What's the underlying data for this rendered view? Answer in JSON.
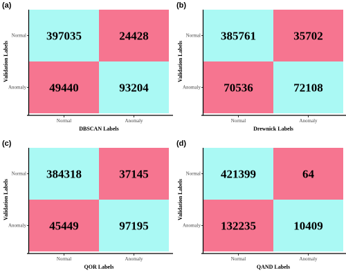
{
  "colors": {
    "correct": "#aaf9f4",
    "incorrect": "#f67590",
    "axis": "#000000",
    "background": "#ffffff"
  },
  "chart_data": [
    {
      "type": "heatmap",
      "panel_label": "(a)",
      "xlabel": "DBSCAN Labels",
      "ylabel": "Validation Labels",
      "x_categories": [
        "Normal",
        "Anomaly"
      ],
      "y_categories": [
        "Normal",
        "Anomaly"
      ],
      "values": [
        [
          397035,
          24428
        ],
        [
          49440,
          93204
        ]
      ]
    },
    {
      "type": "heatmap",
      "panel_label": "(b)",
      "xlabel": "Drewnick Labels",
      "ylabel": "Validation Labels",
      "x_categories": [
        "Normal",
        "Anomaly"
      ],
      "y_categories": [
        "Normal",
        "Anomaly"
      ],
      "values": [
        [
          385761,
          35702
        ],
        [
          70536,
          72108
        ]
      ]
    },
    {
      "type": "heatmap",
      "panel_label": "(c)",
      "xlabel": "QOR Labels",
      "ylabel": "Validation Labels",
      "x_categories": [
        "Normal",
        "Anomaly"
      ],
      "y_categories": [
        "Normal",
        "Anomaly"
      ],
      "values": [
        [
          384318,
          37145
        ],
        [
          45449,
          97195
        ]
      ]
    },
    {
      "type": "heatmap",
      "panel_label": "(d)",
      "xlabel": "QAND Labels",
      "ylabel": "Validation Labels",
      "x_categories": [
        "Normal",
        "Anomaly"
      ],
      "y_categories": [
        "Normal",
        "Anomaly"
      ],
      "values": [
        [
          421399,
          64
        ],
        [
          132235,
          10409
        ]
      ]
    }
  ]
}
